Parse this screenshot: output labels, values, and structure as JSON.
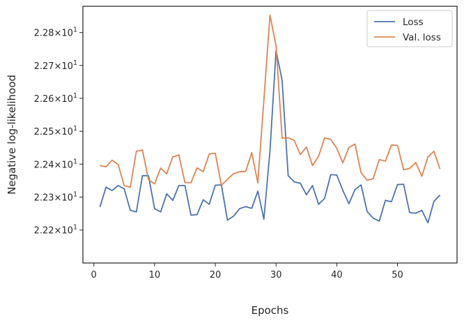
{
  "chart_data": {
    "type": "line",
    "xlabel": "Epochs",
    "ylabel": "Negative log-likelihood",
    "xlim": [
      -1.8,
      59.8
    ],
    "ylim": [
      22.21,
      22.288
    ],
    "y_scale": "log",
    "x_ticks": [
      0,
      10,
      20,
      30,
      40,
      50
    ],
    "x_tick_labels": [
      "0",
      "10",
      "20",
      "30",
      "40",
      "50"
    ],
    "y_ticks": [
      22.22,
      22.23,
      22.24,
      22.25,
      22.26,
      22.27,
      22.28
    ],
    "y_tick_mantissas": [
      "2.22",
      "2.23",
      "2.24",
      "2.25",
      "2.26",
      "2.27",
      "2.28"
    ],
    "y_tick_times": "×",
    "y_tick_base": "10",
    "y_tick_exponent": "1",
    "grid": false,
    "legend_position": "top-right",
    "x": [
      1,
      2,
      3,
      4,
      5,
      6,
      7,
      8,
      9,
      10,
      11,
      12,
      13,
      14,
      15,
      16,
      17,
      18,
      19,
      20,
      21,
      22,
      23,
      24,
      25,
      26,
      27,
      28,
      29,
      30,
      31,
      32,
      33,
      34,
      35,
      36,
      37,
      38,
      39,
      40,
      41,
      42,
      43,
      44,
      45,
      46,
      47,
      48,
      49,
      50,
      51,
      52,
      53,
      54,
      55,
      56,
      57
    ],
    "series": [
      {
        "name": "Loss",
        "color": "#4c72b0",
        "values": [
          22.227,
          22.233,
          22.232,
          22.2335,
          22.2325,
          22.226,
          22.2255,
          22.2365,
          22.2365,
          22.2265,
          22.2255,
          22.231,
          22.229,
          22.2335,
          22.2335,
          22.2245,
          22.2247,
          22.2292,
          22.2278,
          22.2336,
          22.2337,
          22.223,
          22.2242,
          22.2265,
          22.2271,
          22.2266,
          22.2318,
          22.2233,
          22.244,
          22.2745,
          22.2655,
          22.2365,
          22.2346,
          22.2342,
          22.2307,
          22.2335,
          22.2278,
          22.2296,
          22.2368,
          22.2367,
          22.232,
          22.228,
          22.2323,
          22.2337,
          22.2256,
          22.2236,
          22.2227,
          22.229,
          22.2286,
          22.2338,
          22.2339,
          22.2253,
          22.2251,
          22.226,
          22.2222,
          22.2287,
          22.2306
        ]
      },
      {
        "name": "Val. loss",
        "color": "#dd8452",
        "values": [
          22.2396,
          22.2392,
          22.2412,
          22.2399,
          22.2335,
          22.233,
          22.2439,
          22.2443,
          22.2353,
          22.234,
          22.2388,
          22.2371,
          22.2422,
          22.2428,
          22.2344,
          22.2344,
          22.2389,
          22.2377,
          22.2431,
          22.2433,
          22.2336,
          22.2354,
          22.2371,
          22.2377,
          22.2378,
          22.2435,
          22.2343,
          22.2595,
          22.2853,
          22.276,
          22.2479,
          22.248,
          22.2472,
          22.2429,
          22.2452,
          22.2396,
          22.2424,
          22.248,
          22.2475,
          22.2448,
          22.2404,
          22.2451,
          22.2461,
          22.2374,
          22.2351,
          22.2356,
          22.2414,
          22.2409,
          22.2458,
          22.2457,
          22.2383,
          22.2387,
          22.2405,
          22.2363,
          22.2422,
          22.2439,
          22.2385
        ]
      }
    ]
  }
}
